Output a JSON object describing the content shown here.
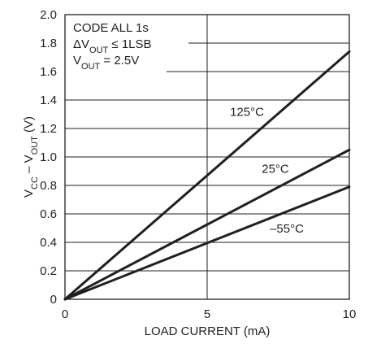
{
  "chart_data": {
    "type": "line",
    "xlabel": "LOAD CURRENT (mA)",
    "ylabel": {
      "parts": [
        {
          "text": "V",
          "sub": "CC"
        },
        {
          "text": " – V",
          "sub": "OUT"
        },
        {
          "text": " (V)",
          "sub": ""
        }
      ]
    },
    "xlim": [
      0,
      10
    ],
    "ylim": [
      0,
      2.0
    ],
    "x_ticks": [
      {
        "value": 0,
        "label": "0"
      },
      {
        "value": 5,
        "label": "5"
      },
      {
        "value": 10,
        "label": "10"
      }
    ],
    "y_ticks": [
      {
        "value": 0,
        "label": "0"
      },
      {
        "value": 0.2,
        "label": "0.2"
      },
      {
        "value": 0.4,
        "label": "0.4"
      },
      {
        "value": 0.6,
        "label": "0.6"
      },
      {
        "value": 0.8,
        "label": "0.8"
      },
      {
        "value": 1.0,
        "label": "1.0"
      },
      {
        "value": 1.2,
        "label": "1.2"
      },
      {
        "value": 1.4,
        "label": "1.4"
      },
      {
        "value": 1.6,
        "label": "1.6"
      },
      {
        "value": 1.8,
        "label": "1.8"
      },
      {
        "value": 2.0,
        "label": "2.0"
      }
    ],
    "grid": true,
    "conditions": [
      [
        {
          "text": "CODE ALL 1s",
          "sub": ""
        }
      ],
      [
        {
          "text": "ΔV",
          "sub": "OUT"
        },
        {
          "text": " ≤ 1LSB",
          "sub": ""
        }
      ],
      [
        {
          "text": "V",
          "sub": "OUT"
        },
        {
          "text": " = 2.5V",
          "sub": ""
        }
      ]
    ],
    "series": [
      {
        "name": "125°C",
        "x": [
          0,
          10
        ],
        "y": [
          0,
          1.74
        ],
        "label_at": {
          "x": 6.4,
          "y": 1.29
        }
      },
      {
        "name": "25°C",
        "x": [
          0,
          10
        ],
        "y": [
          0,
          1.05
        ],
        "label_at": {
          "x": 7.4,
          "y": 0.89
        }
      },
      {
        "name": "–55°C",
        "x": [
          0,
          10
        ],
        "y": [
          0,
          0.79
        ],
        "label_at": {
          "x": 7.8,
          "y": 0.47
        }
      }
    ]
  }
}
